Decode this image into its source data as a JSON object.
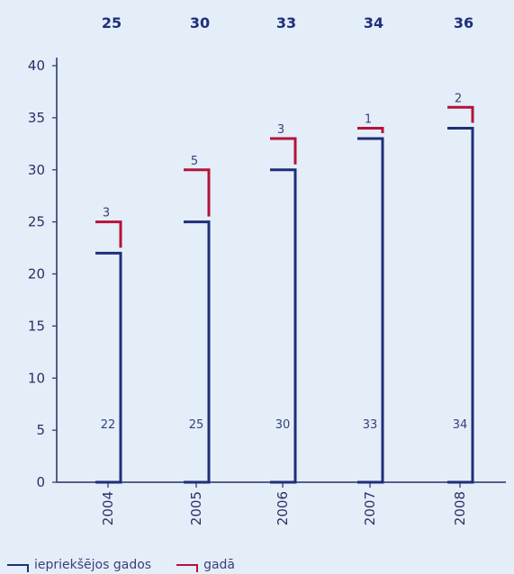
{
  "chart_data": {
    "type": "bar",
    "categories": [
      "2004",
      "2005",
      "2006",
      "2007",
      "2008"
    ],
    "totals": [
      "25",
      "30",
      "33",
      "34",
      "36"
    ],
    "series": [
      {
        "name": "iepriekšējos gados",
        "values": [
          22,
          25,
          30,
          33,
          34
        ],
        "color": "#1f2e7a"
      },
      {
        "name": "gadā",
        "values": [
          3,
          5,
          3,
          1,
          2
        ],
        "color": "#b5123a"
      }
    ],
    "ylim": [
      0,
      40
    ],
    "yticks": [
      "0",
      "5",
      "10",
      "15",
      "20",
      "25",
      "30",
      "35",
      "40"
    ],
    "stacked": true,
    "grid": false,
    "legend_position": "bottom-left"
  }
}
